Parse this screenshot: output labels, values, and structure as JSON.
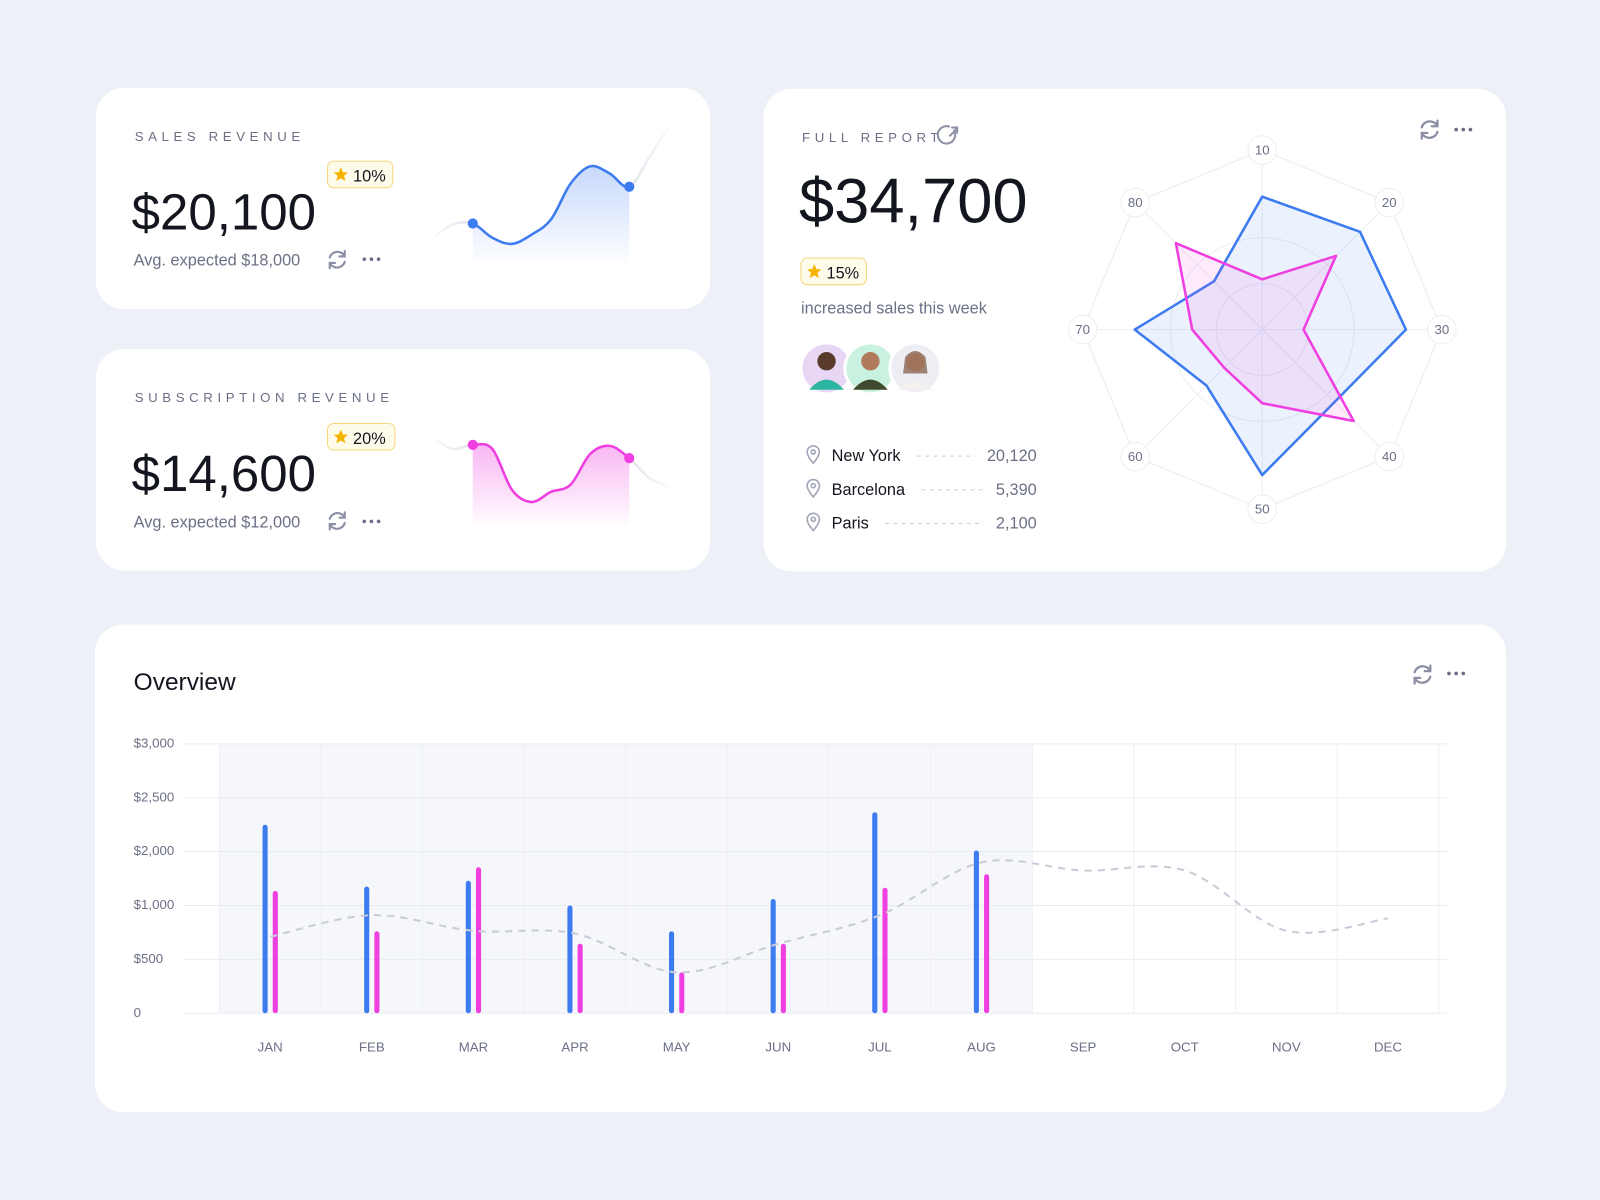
{
  "sales_card": {
    "title": "SALES REVENUE",
    "amount": "$20,100",
    "badge": "10%",
    "note": "Avg. expected $18,000"
  },
  "subscription_card": {
    "title": "SUBSCRIPTION REVENUE",
    "amount": "$14,600",
    "badge": "20%",
    "note": "Avg. expected $12,000"
  },
  "report_card": {
    "title": "FULL REPORT",
    "amount": "$34,700",
    "badge": "15%",
    "note": "increased sales this week",
    "cities": [
      {
        "name": "New York",
        "value": "20,120"
      },
      {
        "name": "Barcelona",
        "value": "5,390"
      },
      {
        "name": "Paris",
        "value": "2,100"
      }
    ]
  },
  "chart_data": [
    {
      "type": "line",
      "color": "#3d7bf0",
      "values": [
        18,
        30,
        31,
        17,
        11,
        20,
        35,
        70,
        87,
        80,
        67,
        95,
        125
      ]
    },
    {
      "type": "line",
      "color": "#ef3fe0",
      "values": [
        90,
        80,
        84,
        80,
        40,
        28,
        38,
        45,
        75,
        83,
        71,
        52,
        43
      ]
    },
    {
      "type": "radar",
      "categories": [
        "10",
        "20",
        "30",
        "40",
        "50",
        "60",
        "70",
        "80"
      ],
      "rlim": [
        0,
        100
      ],
      "series": [
        {
          "color": "#3d7bf0",
          "values": [
            74,
            77,
            80,
            57,
            81,
            44,
            71,
            38
          ]
        },
        {
          "color": "#ef3fe0",
          "values": [
            28,
            58,
            23,
            72,
            41,
            30,
            39,
            68
          ]
        }
      ]
    },
    {
      "type": "bar",
      "title": "Overview",
      "categories": [
        "JAN",
        "FEB",
        "MAR",
        "APR",
        "MAY",
        "JUN",
        "JUL",
        "AUG",
        "SEP",
        "OCT",
        "NOV",
        "DEC"
      ],
      "series": [
        {
          "color": "#3d7bf0",
          "values": [
            2250,
            1350,
            1460,
            1000,
            760,
            1120,
            2365,
            2010,
            null,
            null,
            null,
            null
          ]
        },
        {
          "color": "#ef3fe0",
          "values": [
            1270,
            760,
            1710,
            645,
            380,
            645,
            1330,
            1580,
            null,
            null,
            null,
            null
          ]
        },
        {
          "type": "line",
          "color": "#c9ccd8",
          "values": [
            710,
            910,
            765,
            740,
            380,
            645,
            910,
            1800,
            1650,
            1650,
            765,
            880
          ]
        }
      ],
      "ylim": [
        0,
        3000
      ],
      "yticks": [
        0,
        {
          "value": 500,
          "label": "$500"
        },
        {
          "value": 1000,
          "label": "$1,000"
        },
        {
          "value": 2000,
          "label": "$2,000"
        },
        {
          "value": 2500,
          "label": "$2,500"
        },
        {
          "value": 3000,
          "label": "$3,000"
        }
      ],
      "grid": true
    }
  ]
}
